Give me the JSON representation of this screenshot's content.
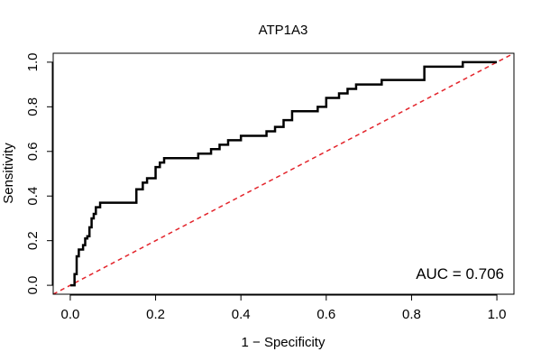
{
  "chart_data": {
    "type": "line",
    "title": "ATP1A3",
    "xlabel": "1 − Specificity",
    "ylabel": "Sensitivity",
    "xlim": [
      -0.04,
      1.04
    ],
    "ylim": [
      -0.04,
      1.04
    ],
    "xticks": [
      0.0,
      0.2,
      0.4,
      0.6,
      0.8,
      1.0
    ],
    "xtick_labels": [
      "0.0",
      "0.2",
      "0.4",
      "0.6",
      "0.8",
      "1.0"
    ],
    "yticks": [
      0.0,
      0.2,
      0.4,
      0.6,
      0.8,
      1.0
    ],
    "ytick_labels": [
      "0.0",
      "0.2",
      "0.4",
      "0.6",
      "0.8",
      "1.0"
    ],
    "grid": false,
    "annotation": "AUC = 0.706",
    "series": [
      {
        "style": "step",
        "color": "#000000",
        "x": [
          0.0,
          0.01,
          0.01,
          0.015,
          0.015,
          0.02,
          0.02,
          0.03,
          0.03,
          0.035,
          0.035,
          0.04,
          0.04,
          0.045,
          0.045,
          0.05,
          0.05,
          0.055,
          0.055,
          0.06,
          0.06,
          0.07,
          0.07,
          0.085,
          0.085,
          0.155,
          0.155,
          0.17,
          0.17,
          0.18,
          0.18,
          0.2,
          0.2,
          0.21,
          0.21,
          0.22,
          0.22,
          0.3,
          0.3,
          0.33,
          0.33,
          0.35,
          0.35,
          0.37,
          0.37,
          0.4,
          0.4,
          0.46,
          0.46,
          0.48,
          0.48,
          0.5,
          0.5,
          0.52,
          0.52,
          0.58,
          0.58,
          0.6,
          0.6,
          0.63,
          0.63,
          0.65,
          0.65,
          0.67,
          0.67,
          0.73,
          0.73,
          0.83,
          0.83,
          0.92,
          0.92,
          1.0
        ],
        "y": [
          0.0,
          0.0,
          0.05,
          0.05,
          0.13,
          0.13,
          0.16,
          0.16,
          0.18,
          0.18,
          0.21,
          0.21,
          0.22,
          0.22,
          0.26,
          0.26,
          0.3,
          0.3,
          0.32,
          0.32,
          0.35,
          0.35,
          0.37,
          0.37,
          0.37,
          0.37,
          0.43,
          0.43,
          0.46,
          0.46,
          0.48,
          0.48,
          0.53,
          0.53,
          0.55,
          0.55,
          0.57,
          0.57,
          0.59,
          0.59,
          0.61,
          0.61,
          0.63,
          0.63,
          0.65,
          0.65,
          0.67,
          0.67,
          0.69,
          0.69,
          0.71,
          0.71,
          0.74,
          0.74,
          0.78,
          0.78,
          0.8,
          0.8,
          0.84,
          0.84,
          0.86,
          0.86,
          0.88,
          0.88,
          0.9,
          0.9,
          0.92,
          0.92,
          0.98,
          0.98,
          1.0,
          1.0
        ]
      },
      {
        "style": "dashed",
        "color": "#e3242b",
        "x": [
          -0.04,
          1.04
        ],
        "y": [
          -0.04,
          1.04
        ]
      }
    ]
  }
}
